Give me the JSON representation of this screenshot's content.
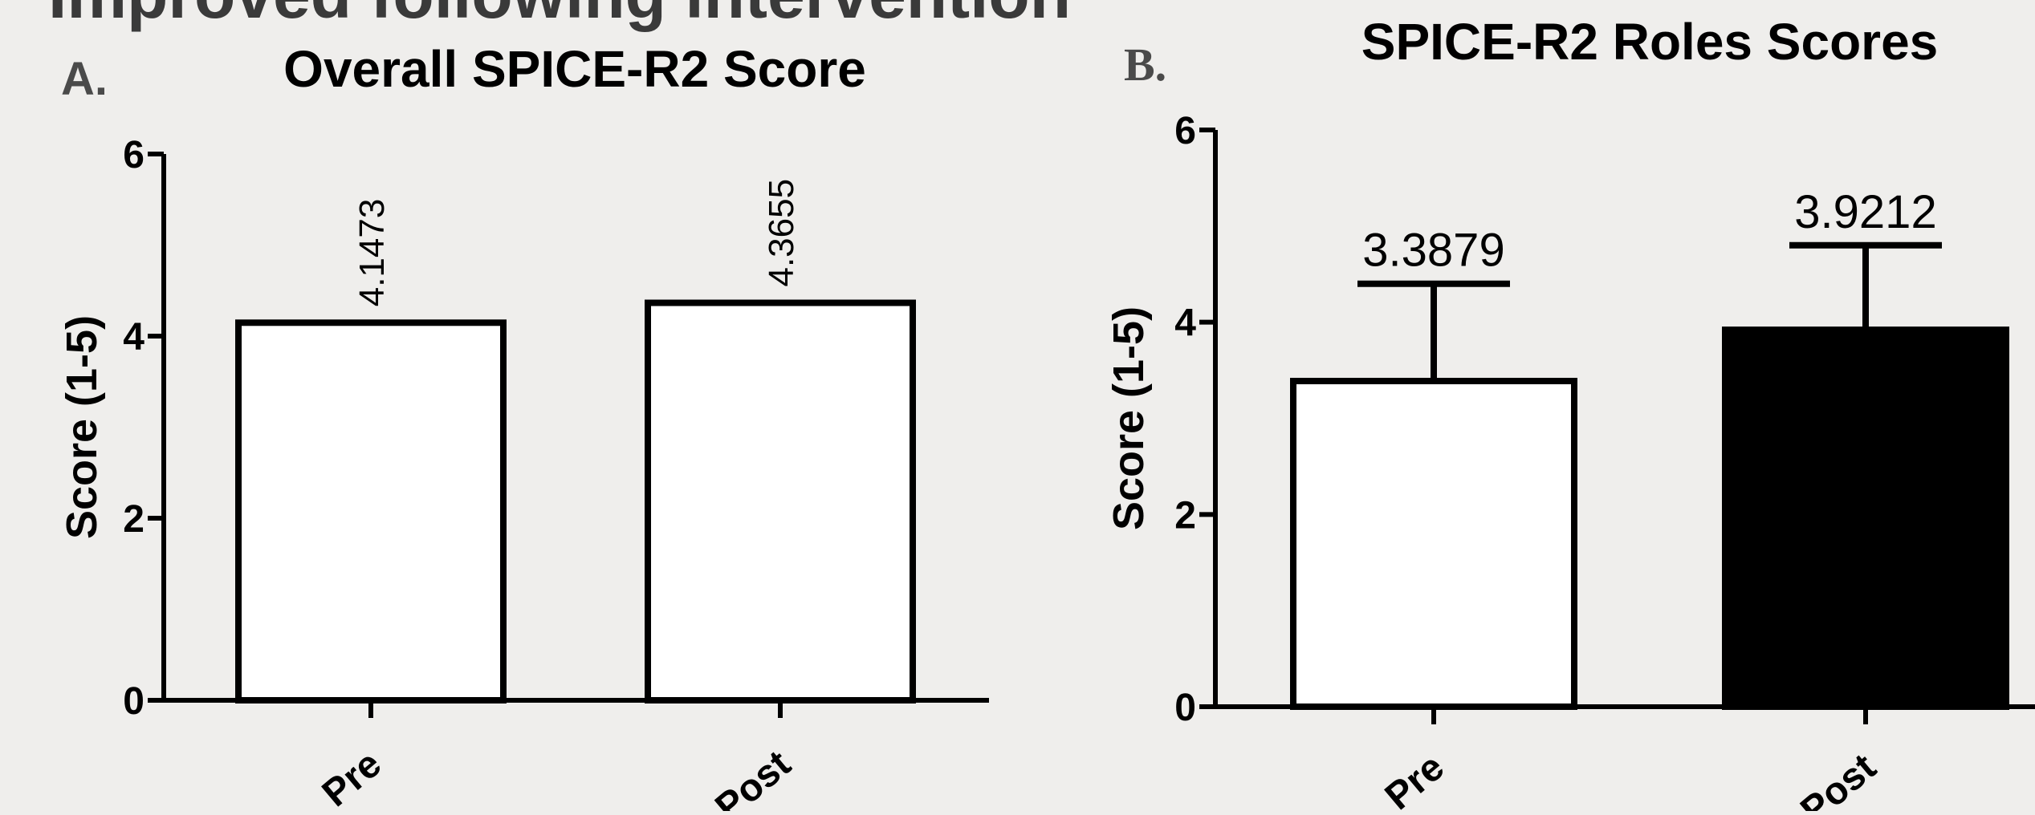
{
  "headline": "Improved following intervention",
  "panels": [
    {
      "letter": "A.",
      "title": "Overall SPICE-R2 Score"
    },
    {
      "letter": "B.",
      "title": "SPICE-R2 Roles Scores"
    }
  ],
  "chart_data": [
    {
      "type": "bar",
      "title": "Overall SPICE-R2 Score",
      "ylabel": "Score (1-5)",
      "xlabel": "",
      "categories": [
        "Pre",
        "Post"
      ],
      "values": [
        4.1473,
        4.3655
      ],
      "data_labels": [
        "4.1473",
        "4.3655"
      ],
      "data_label_rotation": "vertical",
      "yticks": [
        0,
        2,
        4,
        6
      ],
      "ylim": [
        0,
        6
      ],
      "bar_fill": [
        "#ffffff",
        "#ffffff"
      ],
      "error_bars": false,
      "grid": false
    },
    {
      "type": "bar",
      "title": "SPICE-R2 Roles Scores",
      "ylabel": "Score (1-5)",
      "xlabel": "",
      "categories": [
        "Pre",
        "Post"
      ],
      "values": [
        3.3879,
        3.9212
      ],
      "error_upper": [
        4.4,
        4.8
      ],
      "data_labels": [
        "3.3879",
        "3.9212"
      ],
      "data_label_rotation": "horizontal",
      "yticks": [
        0,
        2,
        4,
        6
      ],
      "ylim": [
        0,
        6
      ],
      "bar_fill": [
        "#ffffff",
        "#000000"
      ],
      "error_bars": true,
      "grid": false
    }
  ]
}
